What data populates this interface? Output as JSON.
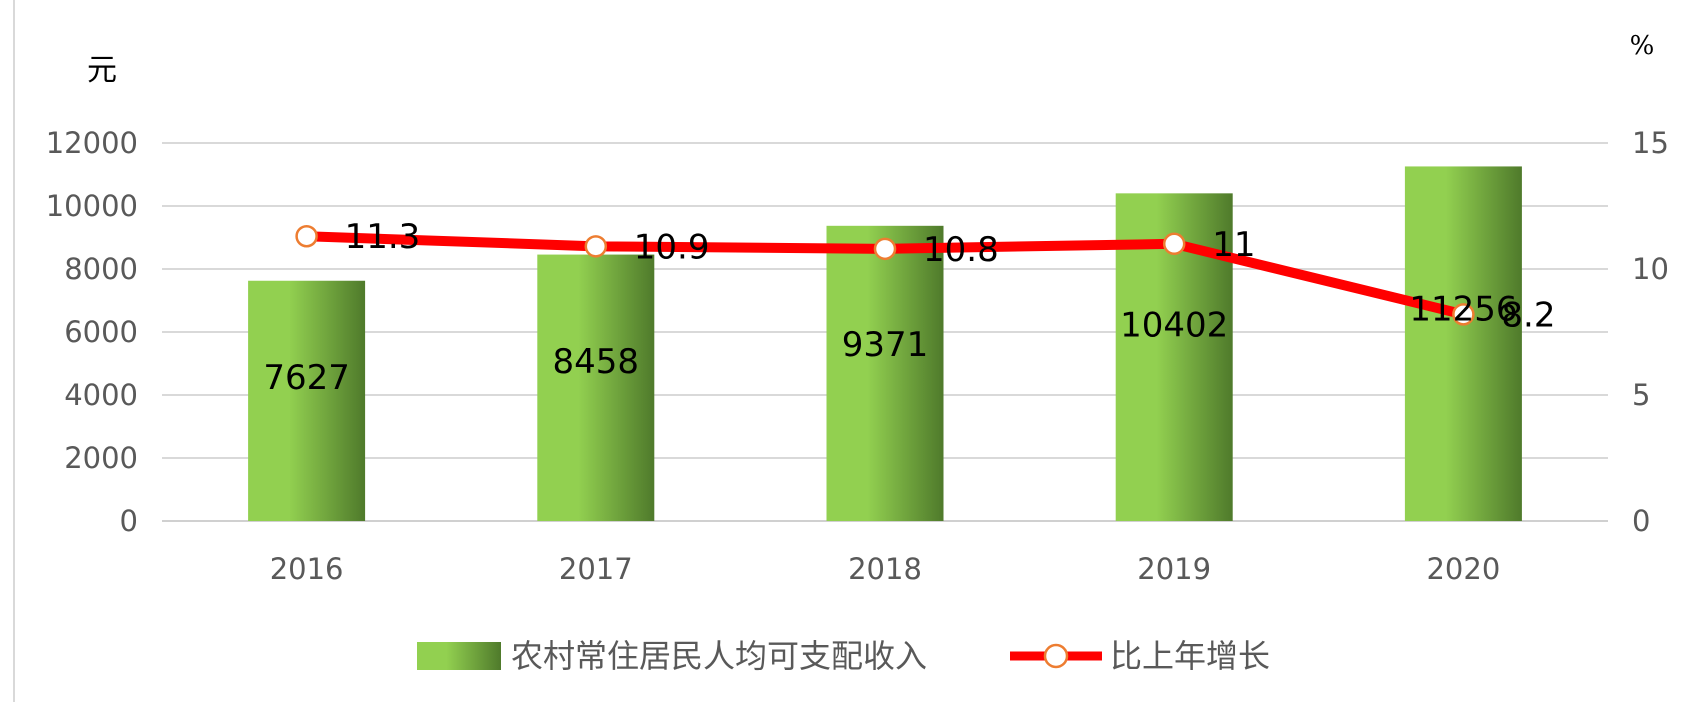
{
  "chart_data": {
    "type": "bar",
    "categories": [
      "2016",
      "2017",
      "2018",
      "2019",
      "2020"
    ],
    "series": [
      {
        "name": "农村常住居民人均可支配收入",
        "type": "bar",
        "axis": "left",
        "values": [
          7627,
          8458,
          9371,
          10402,
          11256
        ],
        "labels": [
          "7627",
          "8458",
          "9371",
          "10402",
          "11256"
        ],
        "color": "#92d050",
        "color_dark": "#4f7a2b"
      },
      {
        "name": "比上年增长",
        "type": "line",
        "axis": "right",
        "values": [
          11.3,
          10.9,
          10.8,
          11,
          8.2
        ],
        "labels": [
          "11.3",
          "10.9",
          "10.8",
          "11",
          "8.2"
        ],
        "color": "#ff0000",
        "marker_color": "#ed7d31"
      }
    ],
    "left_axis": {
      "unit": "元",
      "ylim": [
        0,
        12000
      ],
      "ticks": [
        "0",
        "2000",
        "4000",
        "6000",
        "8000",
        "10000",
        "12000"
      ]
    },
    "right_axis": {
      "unit": "%",
      "ylim": [
        0,
        15
      ],
      "ticks": [
        "0",
        "5",
        "10",
        "15"
      ]
    },
    "grid": true,
    "legend_position": "bottom-center"
  }
}
